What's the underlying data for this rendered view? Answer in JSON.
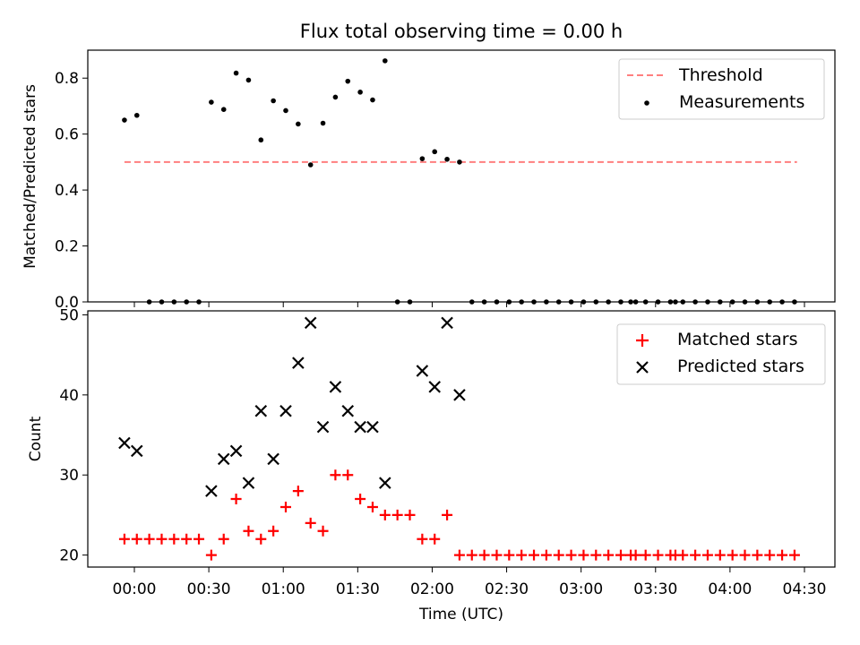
{
  "chart_data": [
    {
      "type": "scatter",
      "title": "Flux total observing time = 0.00 h",
      "xlabel": "",
      "ylabel": "Matched/Predicted stars",
      "ylim": [
        0,
        0.9
      ],
      "yticks": [
        0.0,
        0.2,
        0.4,
        0.6,
        0.8
      ],
      "ytick_labels": [
        "0.0",
        "0.2",
        "0.4",
        "0.6",
        "0.8"
      ],
      "legend": "top-right",
      "threshold": {
        "name": "Threshold",
        "value": 0.5,
        "x_start": "23:56",
        "x_end": "04:27",
        "color": "#ff7f7f"
      },
      "series": [
        {
          "name": "Measurements",
          "color": "#000000",
          "x": [
            "23:56",
            "00:01",
            "00:06",
            "00:11",
            "00:16",
            "00:21",
            "00:26",
            "00:31",
            "00:36",
            "00:41",
            "00:46",
            "00:51",
            "00:56",
            "01:01",
            "01:06",
            "01:11",
            "01:16",
            "01:21",
            "01:26",
            "01:31",
            "01:36",
            "01:41",
            "01:46",
            "01:51",
            "01:56",
            "02:01",
            "02:06",
            "02:11",
            "02:16",
            "02:21",
            "02:26",
            "02:31",
            "02:36",
            "02:41",
            "02:46",
            "02:51",
            "02:56",
            "03:01",
            "03:06",
            "03:11",
            "03:16",
            "03:20",
            "03:22",
            "03:26",
            "03:31",
            "03:36",
            "03:38",
            "03:41",
            "03:46",
            "03:51",
            "03:56",
            "04:01",
            "04:06",
            "04:11",
            "04:16",
            "04:21",
            "04:26"
          ],
          "y": [
            0.65,
            0.667,
            0,
            0,
            0,
            0,
            0,
            0.714,
            0.688,
            0.818,
            0.793,
            0.579,
            0.719,
            0.684,
            0.636,
            0.49,
            0.639,
            0.732,
            0.789,
            0.75,
            0.722,
            0.862,
            0,
            0,
            0.512,
            0.537,
            0.51,
            0.5,
            0,
            0,
            0,
            0,
            0,
            0,
            0,
            0,
            0,
            0,
            0,
            0,
            0,
            0,
            0,
            0,
            0,
            0,
            0,
            0,
            0,
            0,
            0,
            0,
            0,
            0,
            0,
            0,
            0
          ]
        }
      ]
    },
    {
      "type": "scatter",
      "title": "",
      "xlabel": "Time (UTC)",
      "ylabel": "Count",
      "ylim": [
        18.5,
        50.5
      ],
      "yticks": [
        20,
        30,
        40,
        50
      ],
      "ytick_labels": [
        "20",
        "30",
        "40",
        "50"
      ],
      "xlim": [
        "23:52",
        "04:31"
      ],
      "xticks": [
        "00:00",
        "00:30",
        "01:00",
        "01:30",
        "02:00",
        "02:30",
        "03:00",
        "03:30",
        "04:00",
        "04:30"
      ],
      "legend": "top-right",
      "series": [
        {
          "name": "Matched stars",
          "marker": "plus",
          "color": "#ff0000",
          "x": [
            "23:56",
            "00:01",
            "00:06",
            "00:11",
            "00:16",
            "00:21",
            "00:26",
            "00:31",
            "00:36",
            "00:41",
            "00:46",
            "00:51",
            "00:56",
            "01:01",
            "01:06",
            "01:11",
            "01:16",
            "01:21",
            "01:26",
            "01:31",
            "01:36",
            "01:41",
            "01:46",
            "01:51",
            "01:56",
            "02:01",
            "02:06",
            "02:11",
            "02:16",
            "02:21",
            "02:26",
            "02:31",
            "02:36",
            "02:41",
            "02:46",
            "02:51",
            "02:56",
            "03:01",
            "03:06",
            "03:11",
            "03:16",
            "03:20",
            "03:22",
            "03:26",
            "03:31",
            "03:36",
            "03:38",
            "03:41",
            "03:46",
            "03:51",
            "03:56",
            "04:01",
            "04:06",
            "04:11",
            "04:16",
            "04:21",
            "04:26"
          ],
          "y": [
            22,
            22,
            22,
            22,
            22,
            22,
            22,
            20,
            22,
            27,
            23,
            22,
            23,
            26,
            28,
            24,
            23,
            30,
            30,
            27,
            26,
            25,
            25,
            25,
            22,
            22,
            25,
            20,
            20,
            20,
            20,
            20,
            20,
            20,
            20,
            20,
            20,
            20,
            20,
            20,
            20,
            20,
            20,
            20,
            20,
            20,
            20,
            20,
            20,
            20,
            20,
            20,
            20,
            20,
            20,
            20,
            20
          ]
        },
        {
          "name": "Predicted stars",
          "marker": "x",
          "color": "#000000",
          "x": [
            "23:56",
            "00:01",
            "00:31",
            "00:36",
            "00:41",
            "00:46",
            "00:51",
            "00:56",
            "01:01",
            "01:06",
            "01:11",
            "01:16",
            "01:21",
            "01:26",
            "01:31",
            "01:36",
            "01:41",
            "01:56",
            "02:01",
            "02:06",
            "02:11"
          ],
          "y": [
            34,
            33,
            28,
            32,
            33,
            29,
            38,
            32,
            38,
            44,
            49,
            36,
            41,
            38,
            36,
            36,
            29,
            43,
            41,
            49,
            40
          ]
        }
      ]
    }
  ]
}
